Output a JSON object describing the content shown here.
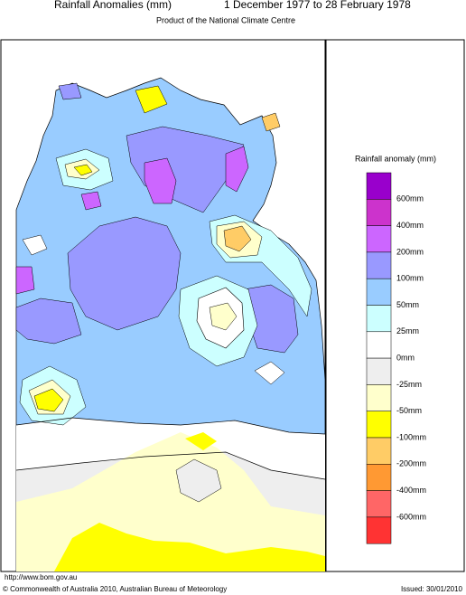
{
  "header": {
    "title": "Rainfall Anomalies (mm)",
    "period": "1 December 1977 to 28 February 1978",
    "subtitle": "Product of the National Climate Centre"
  },
  "legend": {
    "title": "Rainfall anomaly (mm)",
    "labels": [
      "600mm",
      "400mm",
      "200mm",
      "100mm",
      "50mm",
      "25mm",
      "0mm",
      "-25mm",
      "-50mm",
      "-100mm",
      "-200mm",
      "-400mm",
      "-600mm"
    ]
  },
  "footer": {
    "url": "http://www.bom.gov.au",
    "copyright": "© Commonwealth of Australia 2010, Australian Bureau of Meteorology",
    "issued": "Issued: 30/01/2010"
  }
}
